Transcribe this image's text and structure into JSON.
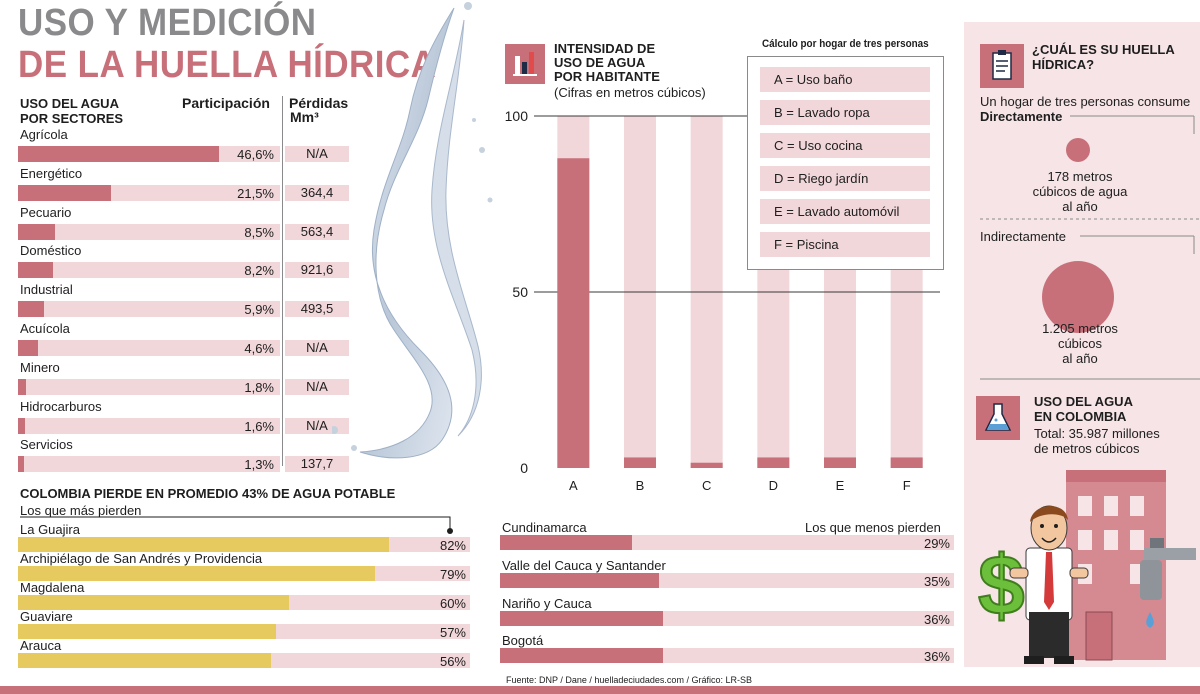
{
  "title": {
    "line1": "USO Y MEDICIÓN",
    "line2": "DE LA HUELLA HÍDRICA"
  },
  "sectors_table": {
    "header_use": "USO DEL AGUA\nPOR SECTORES",
    "header_share": "Participación",
    "header_loss": "Pérdidas",
    "header_loss_unit": "Mm³"
  },
  "loss_section": {
    "title": "COLOMBIA PIERDE EN PROMEDIO 43% DE AGUA POTABLE",
    "most_title": "Los que más pierden",
    "least_title": "Los que menos pierden"
  },
  "chart_header": {
    "title": "INTENSIDAD DE\nUSO DE AGUA\nPOR HABITANTE",
    "subtitle": "(Cifras en metros cúbicos)",
    "legend_title": "Cálculo por hogar de tres personas",
    "legend": [
      "A = Uso baño",
      "B = Lavado ropa",
      "C = Uso cocina",
      "D = Riego jardín",
      "E = Lavado automóvil",
      "F = Piscina"
    ]
  },
  "right_panel": {
    "q_title": "¿CUÁL ES SU HUELLA\nHÍDRICA?",
    "intro": "Un hogar de tres personas consume",
    "direct_label": "Directamente",
    "direct_value": "178 metros\ncúbicos de agua\nal año",
    "indirect_label": "Indirectamente",
    "indirect_value": "1.205 metros\ncúbicos\nal año",
    "colombia_title": "USO DEL AGUA\nEN COLOMBIA",
    "colombia_total": "Total: 35.987 millones\nde metros cúbicos"
  },
  "source": "Fuente:  DNP / Dane / huelladeciudades.com / Gráfico: LR-SB",
  "colors": {
    "rose": "#c8707a",
    "rose_light": "#f1d7da",
    "gold": "#e6c95f",
    "grey": "#8a8a8c",
    "panel": "#f6e4e6"
  },
  "chart_data": [
    {
      "type": "bar",
      "title": "INTENSIDAD DE USO DE AGUA POR HABITANTE",
      "subtitle": "(Cifras en metros cúbicos)",
      "categories": [
        "A",
        "B",
        "C",
        "D",
        "E",
        "F"
      ],
      "values": [
        88,
        3,
        1.5,
        3,
        3,
        3
      ],
      "yticks": [
        "0",
        "50",
        "100"
      ],
      "ylim": [
        0,
        100
      ],
      "grid": true,
      "legend_position": "top-right"
    },
    {
      "type": "bar",
      "orientation": "horizontal",
      "title": "USO DEL AGUA POR SECTORES",
      "categories": [
        "Agrícola",
        "Energético",
        "Pecuario",
        "Doméstico",
        "Industrial",
        "Acuícola",
        "Minero",
        "Hidrocarburos",
        "Servicios"
      ],
      "values": [
        46.6,
        21.5,
        8.5,
        8.2,
        5.9,
        4.6,
        1.8,
        1.6,
        1.3
      ],
      "value_labels": [
        "46,6%",
        "21,5%",
        "8,5%",
        "8,2%",
        "5,9%",
        "4,6%",
        "1,8%",
        "1,6%",
        "1,3%"
      ],
      "loss_labels": [
        "N/A",
        "364,4",
        "563,4",
        "921,6",
        "493,5",
        "N/A",
        "N/A",
        "N/A",
        "137,7"
      ],
      "xlim": [
        0,
        100
      ]
    },
    {
      "type": "bar",
      "orientation": "horizontal",
      "title": "Los que más pierden",
      "categories": [
        "La Guajira",
        "Archipiélago de San Andrés y Providencia",
        "Magdalena",
        "Guaviare",
        "Arauca"
      ],
      "values": [
        82,
        79,
        60,
        57,
        56
      ],
      "value_labels": [
        "82%",
        "79%",
        "60%",
        "57%",
        "56%"
      ],
      "xlim": [
        0,
        100
      ]
    },
    {
      "type": "bar",
      "orientation": "horizontal",
      "title": "Los que menos pierden",
      "categories": [
        "Cundinamarca",
        "Valle del Cauca y Santander",
        "Nariño y Cauca",
        "Bogotá"
      ],
      "values": [
        29,
        35,
        36,
        36
      ],
      "value_labels": [
        "29%",
        "35%",
        "36%",
        "36%"
      ],
      "xlim": [
        0,
        100
      ]
    }
  ]
}
